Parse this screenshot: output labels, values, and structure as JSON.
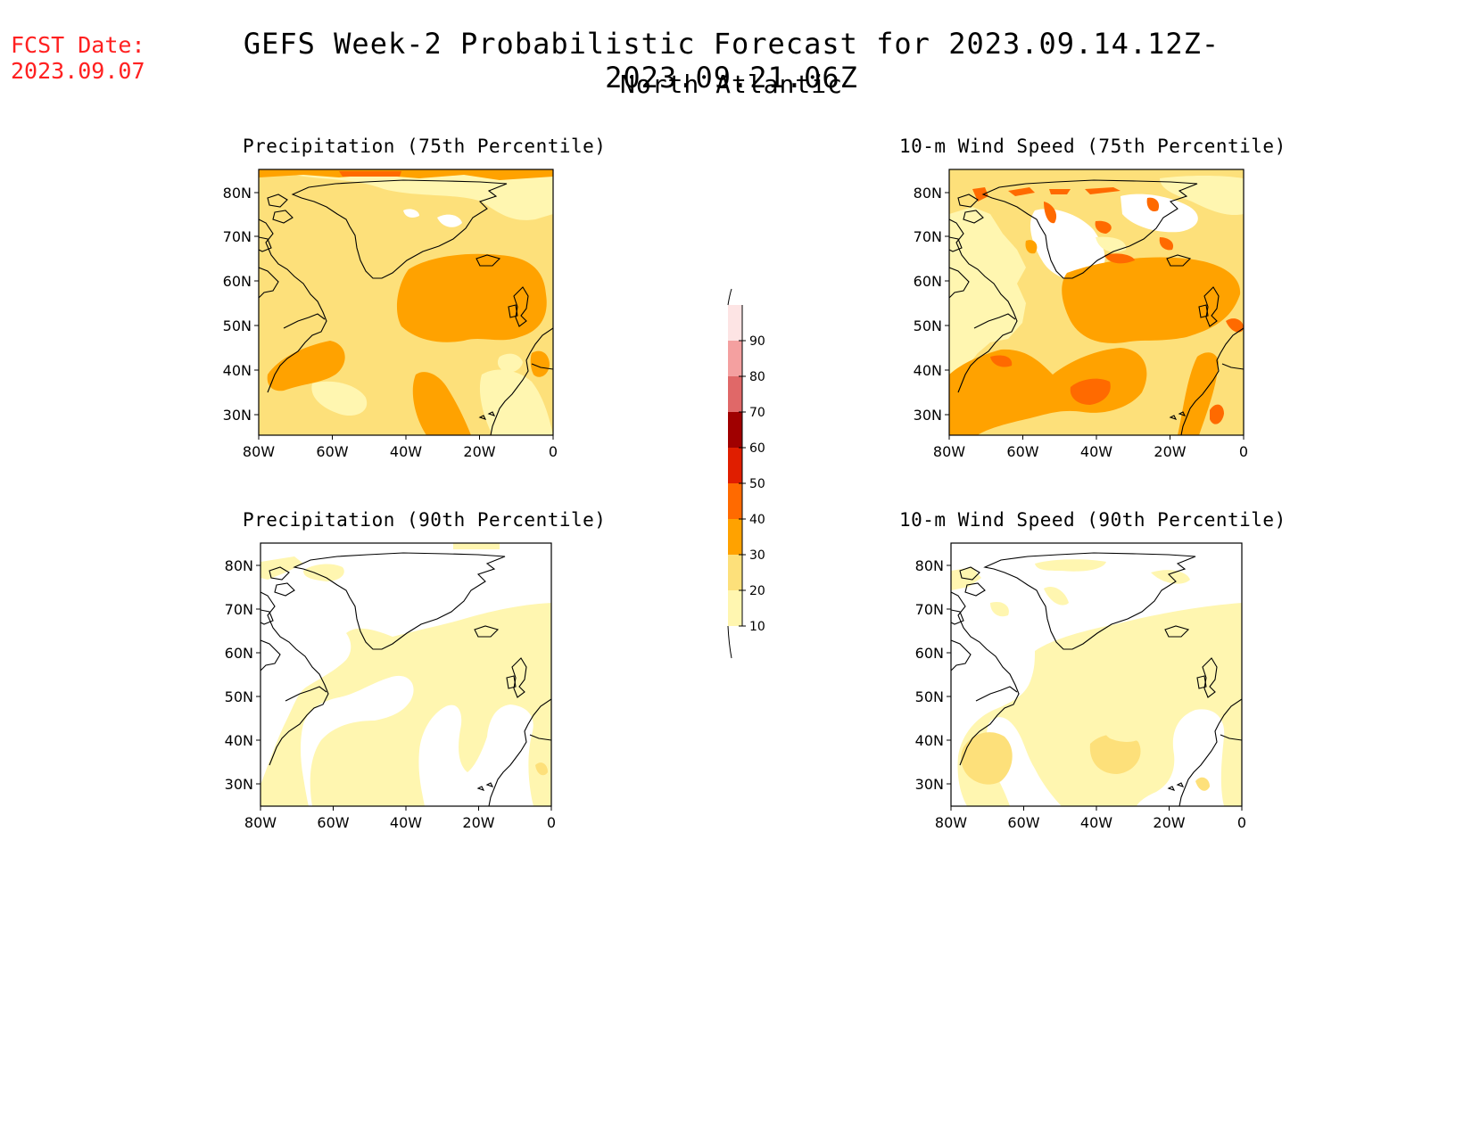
{
  "header": {
    "fcst_label": "FCST Date:",
    "fcst_date": "2023.09.07",
    "title": "GEFS Week-2 Probabilistic Forecast for 2023.09.14.12Z-2023.09.21.06Z",
    "subtitle": "North Atlantic"
  },
  "panels": [
    {
      "title": "Precipitation (75th Percentile)"
    },
    {
      "title": "10-m Wind Speed (75th Percentile)"
    },
    {
      "title": "Precipitation (90th Percentile)"
    },
    {
      "title": "10-m Wind Speed (90th Percentile)"
    }
  ],
  "axes": {
    "lat_labels": [
      "80N",
      "70N",
      "60N",
      "50N",
      "40N",
      "30N"
    ],
    "lon_labels": [
      "80W",
      "60W",
      "40W",
      "20W",
      "0"
    ]
  },
  "colorbar": {
    "levels": [
      "10",
      "20",
      "30",
      "40",
      "50",
      "60",
      "70",
      "80",
      "90"
    ],
    "colors": [
      "#fff6b0",
      "#fde07a",
      "#ffa200",
      "#ff6a00",
      "#e01e00",
      "#a00000",
      "#e06868",
      "#f4a0a0",
      "#fde4e4"
    ]
  }
}
